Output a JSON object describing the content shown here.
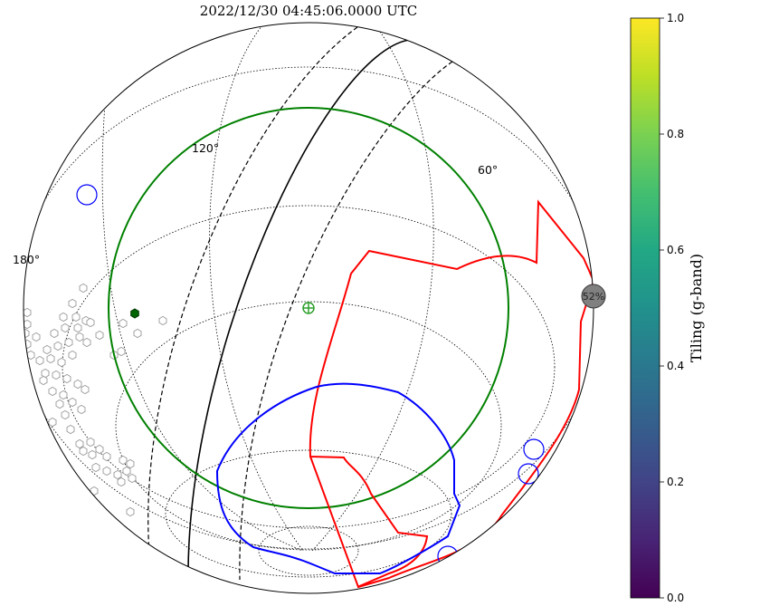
{
  "chart_data": {
    "type": "sky-map",
    "title": "2022/12/30 04:45:06.0000 UTC",
    "projection": "orthographic globe",
    "grid": true,
    "grid_labels": [
      "180°",
      "120°",
      "60°"
    ],
    "colorbar": {
      "label": "Tiling (g-band)",
      "colormap": "viridis",
      "min": 0.0,
      "max": 1.0,
      "ticks": [
        "0.0",
        "0.2",
        "0.4",
        "0.6",
        "0.8",
        "1.0"
      ]
    },
    "moon_label": "52%",
    "colors": {
      "horizon": "#008000",
      "galactic_plane": "#000000",
      "ecliptic_band": "#000000",
      "localization": "#ff0000",
      "coverage": "#0000ff",
      "bright_objects": "#0000ff",
      "fields": "#aaaaaa",
      "target": "#006400",
      "moon": "#808080"
    },
    "icons": [
      "zenith-marker-icon",
      "moon-icon",
      "target-icon"
    ]
  }
}
